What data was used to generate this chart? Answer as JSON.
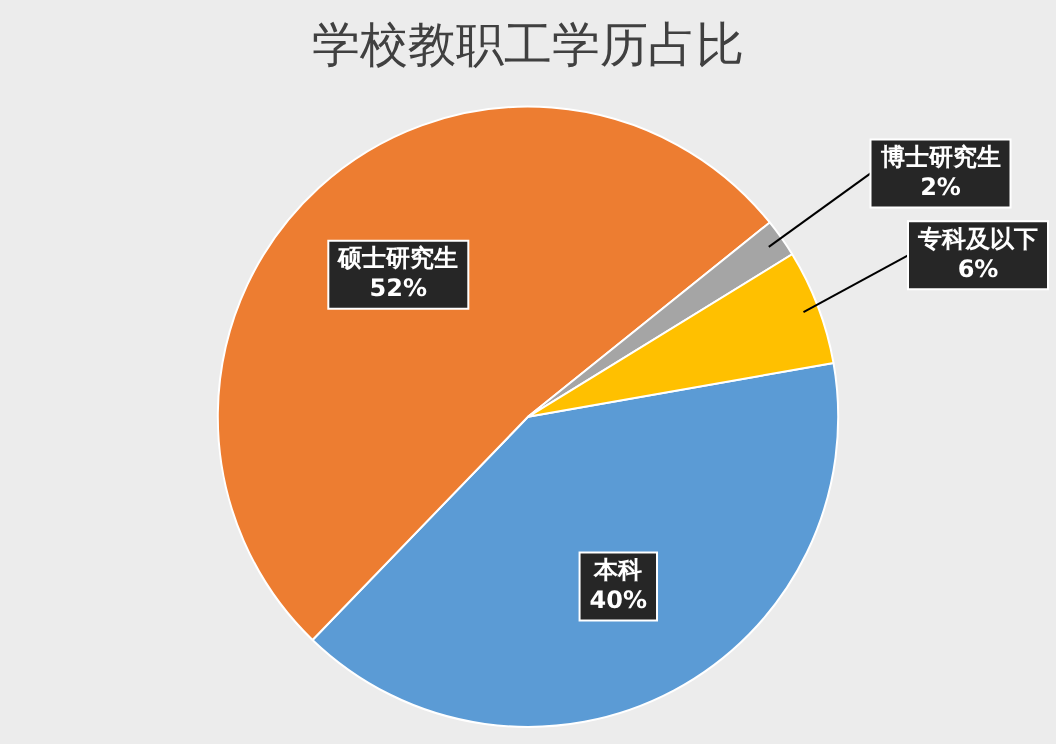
{
  "chart_data": {
    "type": "pie",
    "title": "学校教职工学历占比",
    "categories": [
      "本科",
      "硕士研究生",
      "博士研究生",
      "专科及以下"
    ],
    "values": [
      40,
      52,
      2,
      6
    ],
    "value_labels": [
      "40%",
      "52%",
      "2%",
      "6%"
    ],
    "colors": [
      "#5b9bd5",
      "#ed7d31",
      "#a5a5a5",
      "#ffc000"
    ],
    "legend": false
  }
}
